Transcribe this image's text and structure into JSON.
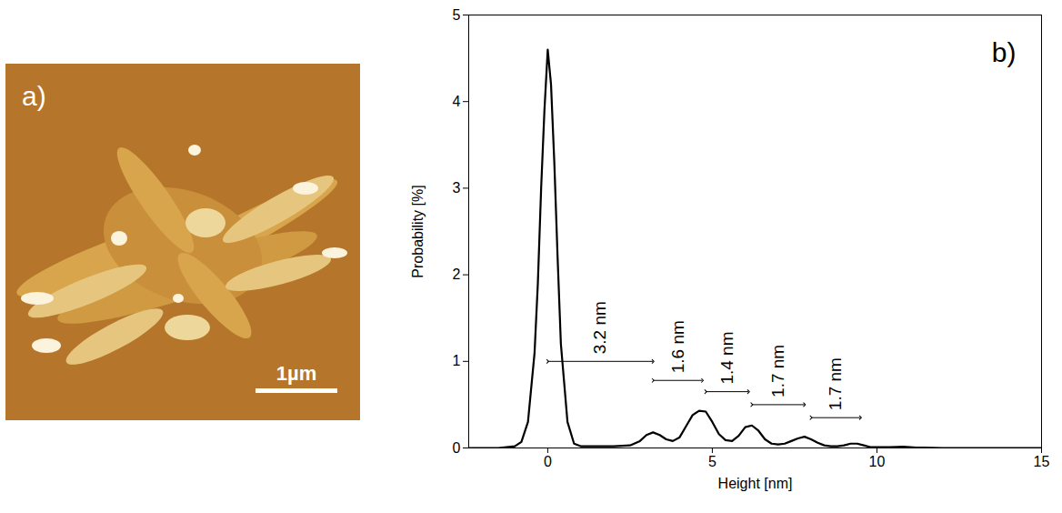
{
  "chart_data": {
    "type": "line",
    "panel_label": "b)",
    "x_label": "Height [nm]",
    "y_label": "Probability [%]",
    "x": [
      -2.4,
      -2,
      -1.5,
      -1,
      -0.8,
      -0.6,
      -0.4,
      -0.3,
      -0.2,
      -0.1,
      0,
      0.1,
      0.2,
      0.3,
      0.4,
      0.6,
      0.8,
      1,
      1.5,
      2,
      2.5,
      2.8,
      3,
      3.2,
      3.4,
      3.6,
      3.8,
      4,
      4.2,
      4.4,
      4.6,
      4.8,
      5,
      5.2,
      5.4,
      5.6,
      5.8,
      6,
      6.2,
      6.4,
      6.6,
      6.8,
      7,
      7.2,
      7.4,
      7.6,
      7.8,
      8,
      8.2,
      8.4,
      8.6,
      8.8,
      9,
      9.2,
      9.4,
      9.6,
      9.8,
      10,
      10.4,
      10.8,
      11.2,
      12,
      13,
      14,
      15
    ],
    "values": [
      0,
      0,
      0,
      0.02,
      0.07,
      0.3,
      1.1,
      1.9,
      3.0,
      3.9,
      4.6,
      4.2,
      3.3,
      2.2,
      1.2,
      0.3,
      0.05,
      0.02,
      0.02,
      0.02,
      0.03,
      0.08,
      0.15,
      0.18,
      0.15,
      0.1,
      0.08,
      0.12,
      0.25,
      0.38,
      0.43,
      0.42,
      0.3,
      0.16,
      0.09,
      0.08,
      0.14,
      0.24,
      0.26,
      0.2,
      0.1,
      0.05,
      0.04,
      0.05,
      0.08,
      0.11,
      0.13,
      0.1,
      0.06,
      0.03,
      0.02,
      0.02,
      0.03,
      0.05,
      0.05,
      0.03,
      0.01,
      0.01,
      0.01,
      0.015,
      0.005,
      0,
      0,
      0,
      0
    ],
    "color": "#000000",
    "xlim": [
      -2.4,
      15
    ],
    "xticks": [
      0,
      5,
      10,
      15
    ],
    "ylim": [
      0,
      5
    ],
    "yticks": [
      0,
      1,
      2,
      3,
      4,
      5
    ],
    "grid": false,
    "annotations": [
      {
        "text": "3.2 nm",
        "x1": 0,
        "x2": 3.2,
        "y": 1.0
      },
      {
        "text": "1.6 nm",
        "x1": 3.2,
        "x2": 4.7,
        "y": 0.78
      },
      {
        "text": "1.4 nm",
        "x1": 4.8,
        "x2": 6.1,
        "y": 0.65
      },
      {
        "text": "1.7 nm",
        "x1": 6.2,
        "x2": 7.8,
        "y": 0.5
      },
      {
        "text": "1.7 nm",
        "x1": 8.0,
        "x2": 9.5,
        "y": 0.35
      }
    ]
  },
  "image_panel": {
    "panel_label": "a)",
    "scale_bar_label": "1µm"
  }
}
